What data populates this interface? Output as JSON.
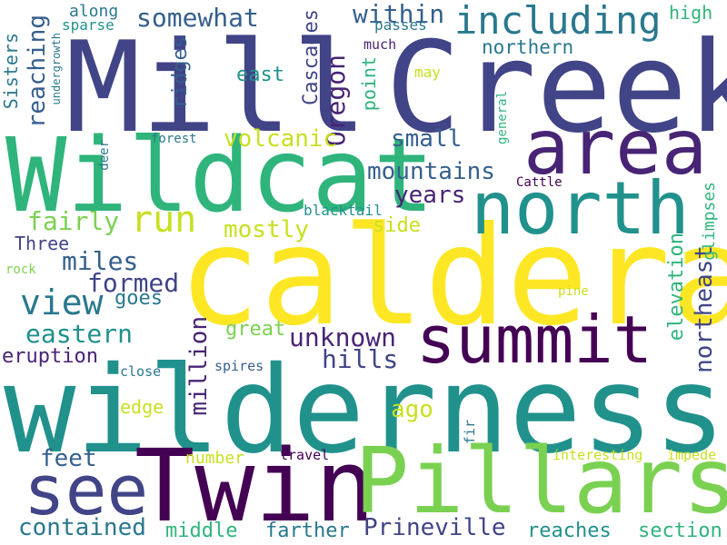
{
  "cloud": {
    "palette": {
      "yellow": "#fde725",
      "lime": "#7ad151",
      "green": "#22a884",
      "mint": "#2fb47c",
      "teal": "#21918c",
      "petrol": "#2a788e",
      "blue": "#355f8d",
      "indigo": "#414487",
      "violet": "#482475",
      "purple": "#440154"
    },
    "words": [
      {
        "id": "caldera",
        "text": "caldera",
        "color": "#fde725"
      },
      {
        "id": "wilderness",
        "text": "wilderness",
        "color": "#21918c"
      },
      {
        "id": "creek",
        "text": "Creek",
        "color": "#414487"
      },
      {
        "id": "mill",
        "text": "Mill",
        "color": "#414487"
      },
      {
        "id": "wildcat",
        "text": "Wildcat",
        "color": "#2fb47c"
      },
      {
        "id": "twin",
        "text": "Twin",
        "color": "#440154"
      },
      {
        "id": "pillars",
        "text": "Pillars",
        "color": "#7ad151"
      },
      {
        "id": "north",
        "text": "north",
        "color": "#21918c"
      },
      {
        "id": "area",
        "text": "area",
        "color": "#482475"
      },
      {
        "id": "summit",
        "text": "summit",
        "color": "#440154"
      },
      {
        "id": "see",
        "text": "see",
        "color": "#414487"
      },
      {
        "id": "including",
        "text": "including",
        "color": "#2a788e"
      },
      {
        "id": "run",
        "text": "run",
        "color": "#c8e020"
      },
      {
        "id": "view",
        "text": "view",
        "color": "#2a788e"
      },
      {
        "id": "somewhat",
        "text": "somewhat",
        "color": "#355f8d"
      },
      {
        "id": "within",
        "text": "within",
        "color": "#355f8d"
      },
      {
        "id": "high",
        "text": "high",
        "color": "#2fb47c"
      },
      {
        "id": "northern",
        "text": "northern",
        "color": "#2a788e"
      },
      {
        "id": "oregon",
        "text": "Oregon",
        "color": "#482475"
      },
      {
        "id": "cascades",
        "text": "Cascades",
        "color": "#414487"
      },
      {
        "id": "reaching",
        "text": "reaching",
        "color": "#355f8d"
      },
      {
        "id": "ridges",
        "text": "ridges",
        "color": "#355f8d"
      },
      {
        "id": "sisters",
        "text": "Sisters",
        "color": "#2a788e"
      },
      {
        "id": "east",
        "text": "east",
        "color": "#21918c"
      },
      {
        "id": "point",
        "text": "point",
        "color": "#2fb47c"
      },
      {
        "id": "volcanic",
        "text": "volcanic",
        "color": "#c8e020"
      },
      {
        "id": "small",
        "text": "small",
        "color": "#355f8d"
      },
      {
        "id": "mountains",
        "text": "mountains",
        "color": "#355f8d"
      },
      {
        "id": "years",
        "text": "years",
        "color": "#482475"
      },
      {
        "id": "fairly",
        "text": "fairly",
        "color": "#7ad151"
      },
      {
        "id": "mostly",
        "text": "mostly",
        "color": "#c8e020"
      },
      {
        "id": "side",
        "text": "side",
        "color": "#c8e020"
      },
      {
        "id": "miles",
        "text": "miles",
        "color": "#355f8d"
      },
      {
        "id": "formed",
        "text": "formed",
        "color": "#414487"
      },
      {
        "id": "goes",
        "text": "goes",
        "color": "#2a788e"
      },
      {
        "id": "eastern",
        "text": "eastern",
        "color": "#21918c"
      },
      {
        "id": "unknown",
        "text": "unknown",
        "color": "#482475"
      },
      {
        "id": "hills",
        "text": "hills",
        "color": "#414487"
      },
      {
        "id": "great",
        "text": "great",
        "color": "#7ad151"
      },
      {
        "id": "million",
        "text": "million",
        "color": "#482475"
      },
      {
        "id": "elevation",
        "text": "elevation",
        "color": "#2fb47c"
      },
      {
        "id": "northeast",
        "text": "northeast",
        "color": "#414487"
      },
      {
        "id": "glimpses",
        "text": "glimpses",
        "color": "#2fb47c"
      },
      {
        "id": "eruption",
        "text": "eruption",
        "color": "#482475"
      },
      {
        "id": "edge",
        "text": "edge",
        "color": "#c8e020"
      },
      {
        "id": "ago",
        "text": "ago",
        "color": "#c8e020"
      },
      {
        "id": "feet",
        "text": "feet",
        "color": "#355f8d"
      },
      {
        "id": "number",
        "text": "number",
        "color": "#c8e020"
      },
      {
        "id": "contained",
        "text": "contained",
        "color": "#2a788e"
      },
      {
        "id": "middle",
        "text": "middle",
        "color": "#2fb47c"
      },
      {
        "id": "farther",
        "text": "farther",
        "color": "#2a788e"
      },
      {
        "id": "prineville",
        "text": "Prineville",
        "color": "#414487"
      },
      {
        "id": "reaches",
        "text": "reaches",
        "color": "#21918c"
      },
      {
        "id": "section",
        "text": "section",
        "color": "#2fb47c"
      },
      {
        "id": "three",
        "text": "Three",
        "color": "#414487"
      },
      {
        "id": "along",
        "text": "along",
        "color": "#2a788e"
      },
      {
        "id": "sparse",
        "text": "sparse",
        "color": "#21918c"
      },
      {
        "id": "passes",
        "text": "passes",
        "color": "#2a788e"
      },
      {
        "id": "much",
        "text": "much",
        "color": "#482475"
      },
      {
        "id": "may",
        "text": "may",
        "color": "#c8e020"
      },
      {
        "id": "undergrowth",
        "text": "undergrowth",
        "color": "#2a788e"
      },
      {
        "id": "general",
        "text": "general",
        "color": "#2fb47c"
      },
      {
        "id": "forest",
        "text": "forest",
        "color": "#2a788e"
      },
      {
        "id": "deer",
        "text": "deer",
        "color": "#2a788e"
      },
      {
        "id": "cattle",
        "text": "Cattle",
        "color": "#440154"
      },
      {
        "id": "blacktail",
        "text": "blacktail",
        "color": "#21918c"
      },
      {
        "id": "rock",
        "text": "rock",
        "color": "#7ad151"
      },
      {
        "id": "pine",
        "text": "pine",
        "color": "#c8e020"
      },
      {
        "id": "close",
        "text": "close",
        "color": "#2a788e"
      },
      {
        "id": "spires",
        "text": "spires",
        "color": "#355f8d"
      },
      {
        "id": "fir",
        "text": "fir",
        "color": "#2a788e"
      },
      {
        "id": "travel",
        "text": "travel",
        "color": "#440154"
      },
      {
        "id": "interesting",
        "text": "interesting",
        "color": "#c8e020"
      },
      {
        "id": "impede",
        "text": "impede",
        "color": "#c8e020"
      }
    ]
  }
}
